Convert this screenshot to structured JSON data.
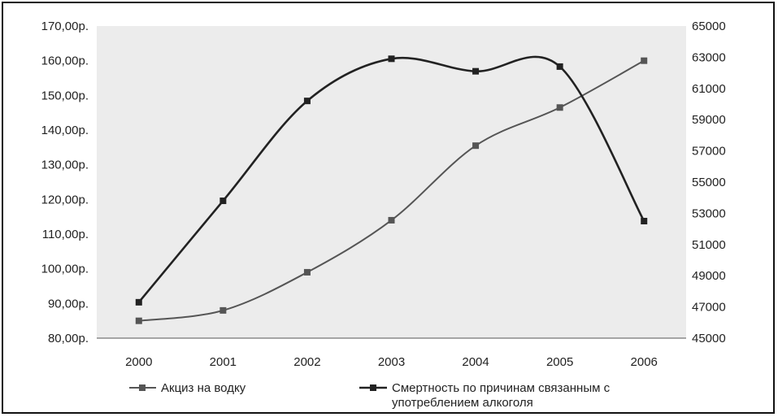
{
  "chart_data": {
    "type": "line",
    "categories": [
      "2000",
      "2001",
      "2002",
      "2003",
      "2004",
      "2005",
      "2006"
    ],
    "ylim_left": [
      80,
      170
    ],
    "ylim_right": [
      45000,
      65000
    ],
    "left_ticks": [
      "80,00р.",
      "90,00р.",
      "100,00р.",
      "110,00р.",
      "120,00р.",
      "130,00р.",
      "140,00р.",
      "150,00р.",
      "160,00р.",
      "170,00р."
    ],
    "right_ticks": [
      "45000",
      "47000",
      "49000",
      "51000",
      "53000",
      "55000",
      "57000",
      "59000",
      "61000",
      "63000",
      "65000"
    ],
    "grid": false,
    "legend_position": "bottom",
    "series": [
      {
        "name": "Акциз на водку",
        "axis": "left",
        "values": [
          85,
          88,
          99,
          114,
          135.5,
          146.5,
          160
        ],
        "color": "#555555"
      },
      {
        "name": "Смертность по причинам связанным с употреблением алкоголя",
        "axis": "right",
        "values": [
          47300,
          53800,
          60200,
          62900,
          62100,
          62400,
          52500
        ],
        "color": "#222222"
      }
    ]
  }
}
